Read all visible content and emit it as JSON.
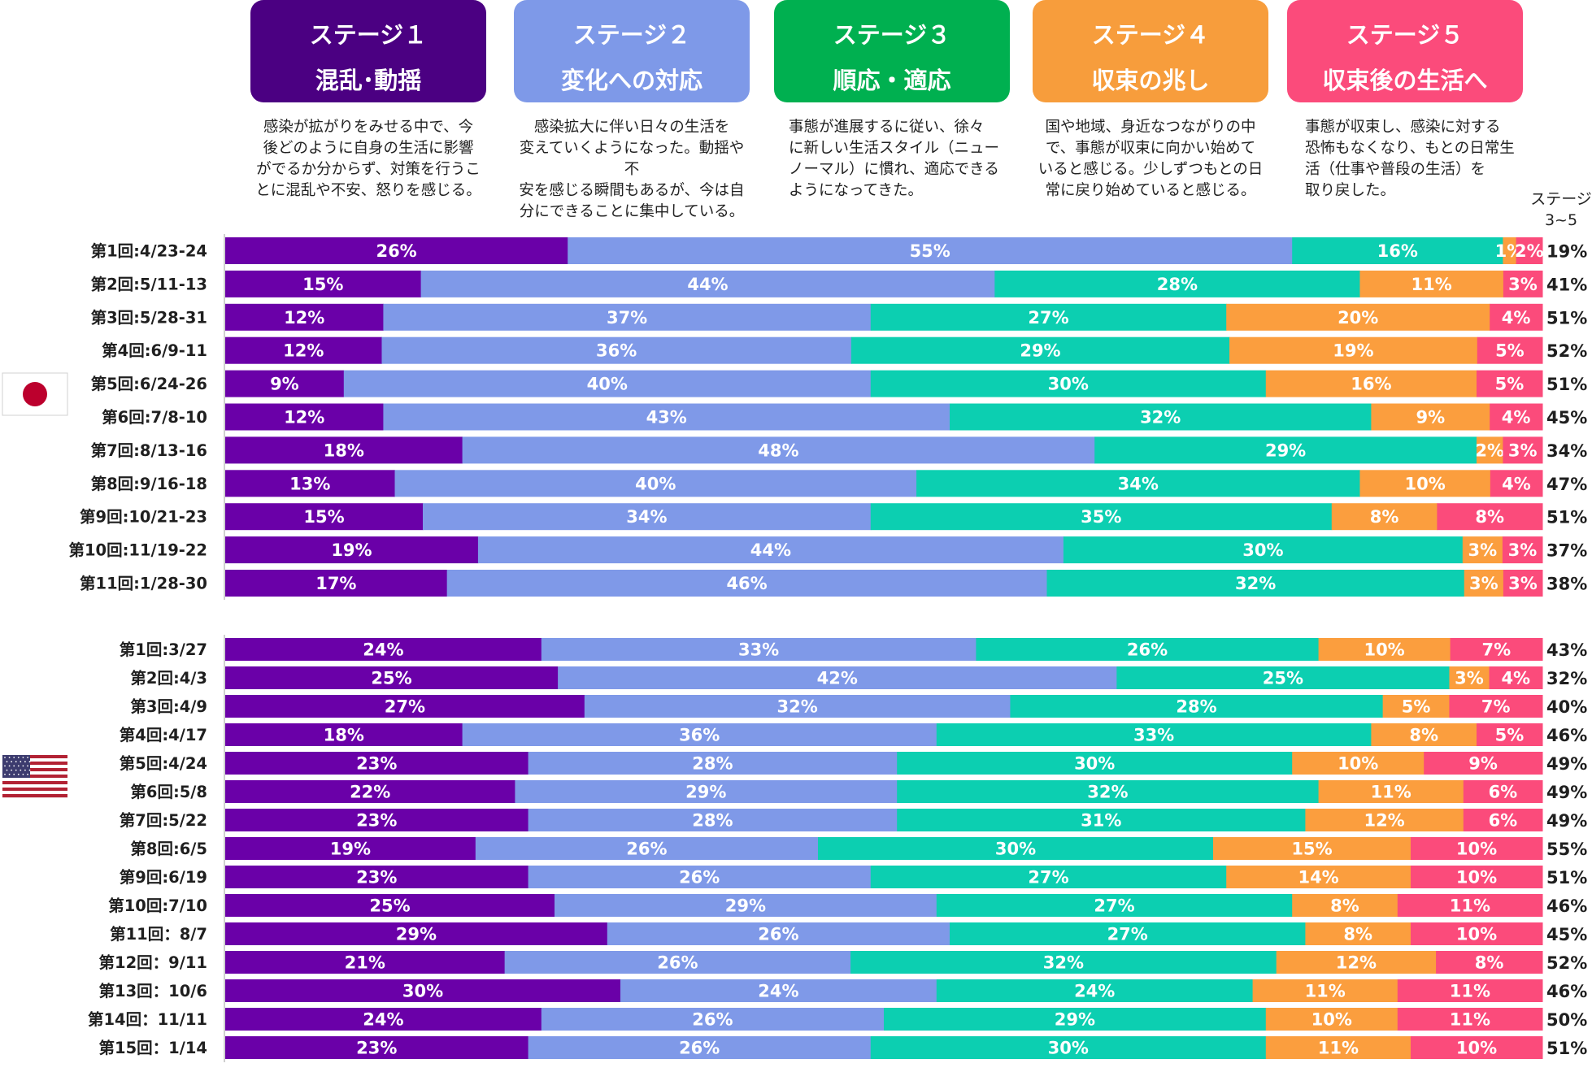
{
  "stages": [
    {
      "title": "ステージ１",
      "subtitle": "混乱･動揺",
      "color": "#4b0082",
      "desc": [
        "感染が拡がりをみせる中で、今",
        "後どのように自身の生活に影響",
        "がでるか分からず、対策を行うこ",
        "とに混乱や不安、怒りを感じる。"
      ]
    },
    {
      "title": "ステージ２",
      "subtitle": "変化への対応",
      "color": "#7e99e8",
      "desc": [
        "感染拡大に伴い日々の生活を",
        "変えていくようになった。動揺や不",
        "安を感じる瞬間もあるが、今は自",
        "分にできることに集中している。"
      ]
    },
    {
      "title": "ステージ３",
      "subtitle": "順応・適応",
      "color": "#00b050",
      "desc": [
        "事態が進展するに従い、徐々",
        "に新しい生活スタイル（ニュー",
        "ノーマル）に慣れ、適応できる",
        "ようになってきた。"
      ]
    },
    {
      "title": "ステージ４",
      "subtitle": "収束の兆し",
      "color": "#f79d3c",
      "desc": [
        "国や地域、身近なつながりの中",
        "で、事態が収束に向かい始めて",
        "いると感じる。少しずつもとの日",
        "常に戻り始めていると感じる。"
      ]
    },
    {
      "title": "ステージ５",
      "subtitle": "収束後の生活へ",
      "color": "#fb4b7b",
      "desc": [
        "事態が収束し、感染に対する",
        "恐怖もなくなり、もとの日常生",
        "活（仕事や普段の生活）を",
        "取り戻した。"
      ]
    }
  ],
  "stage35_header": [
    "ステージ",
    "3~5"
  ],
  "chart_data": {
    "type": "bar",
    "orientation": "horizontal-stacked-100",
    "series_colors": [
      "#6a00a8",
      "#7f99e8",
      "#0ccfb1",
      "#fb9e3e",
      "#fb4b7b"
    ],
    "groups": [
      {
        "flag": "japan-flag",
        "rows": [
          {
            "label": "第1回:4/23-24",
            "values": [
              26,
              55,
              16,
              1,
              2
            ],
            "total35": "19%"
          },
          {
            "label": "第2回:5/11-13",
            "values": [
              15,
              44,
              28,
              11,
              3
            ],
            "total35": "41%"
          },
          {
            "label": "第3回:5/28-31",
            "values": [
              12,
              37,
              27,
              20,
              4
            ],
            "total35": "51%"
          },
          {
            "label": "第4回:6/9-11",
            "values": [
              12,
              36,
              29,
              19,
              5
            ],
            "total35": "52%"
          },
          {
            "label": "第5回:6/24-26",
            "values": [
              9,
              40,
              30,
              16,
              5
            ],
            "total35": "51%"
          },
          {
            "label": "第6回:7/8-10",
            "values": [
              12,
              43,
              32,
              9,
              4
            ],
            "total35": "45%"
          },
          {
            "label": "第7回:8/13-16",
            "values": [
              18,
              48,
              29,
              2,
              3
            ],
            "total35": "34%"
          },
          {
            "label": "第8回:9/16-18",
            "values": [
              13,
              40,
              34,
              10,
              4
            ],
            "total35": "47%"
          },
          {
            "label": "第9回:10/21-23",
            "values": [
              15,
              34,
              35,
              8,
              8
            ],
            "total35": "51%"
          },
          {
            "label": "第10回:11/19-22",
            "values": [
              19,
              44,
              30,
              3,
              3
            ],
            "total35": "37%"
          },
          {
            "label": "第11回:1/28-30",
            "values": [
              17,
              46,
              32,
              3,
              3
            ],
            "total35": "38%"
          }
        ]
      },
      {
        "flag": "usa-flag",
        "rows": [
          {
            "label": "第1回:3/27",
            "values": [
              24,
              33,
              26,
              10,
              7
            ],
            "total35": "43%"
          },
          {
            "label": "第2回:4/3",
            "values": [
              25,
              42,
              25,
              3,
              4
            ],
            "total35": "32%"
          },
          {
            "label": "第3回:4/9",
            "values": [
              27,
              32,
              28,
              5,
              7
            ],
            "total35": "40%"
          },
          {
            "label": "第4回:4/17",
            "values": [
              18,
              36,
              33,
              8,
              5
            ],
            "total35": "46%"
          },
          {
            "label": "第5回:4/24",
            "values": [
              23,
              28,
              30,
              10,
              9
            ],
            "total35": "49%"
          },
          {
            "label": "第6回:5/8",
            "values": [
              22,
              29,
              32,
              11,
              6
            ],
            "total35": "49%"
          },
          {
            "label": "第7回:5/22",
            "values": [
              23,
              28,
              31,
              12,
              6
            ],
            "total35": "49%"
          },
          {
            "label": "第8回:6/5",
            "values": [
              19,
              26,
              30,
              15,
              10
            ],
            "total35": "55%"
          },
          {
            "label": "第9回:6/19",
            "values": [
              23,
              26,
              27,
              14,
              10
            ],
            "total35": "51%"
          },
          {
            "label": "第10回:7/10",
            "values": [
              25,
              29,
              27,
              8,
              11
            ],
            "total35": "46%"
          },
          {
            "label": "第11回：8/7",
            "values": [
              29,
              26,
              27,
              8,
              10
            ],
            "total35": "45%"
          },
          {
            "label": "第12回：9/11",
            "values": [
              21,
              26,
              32,
              12,
              8
            ],
            "total35": "52%"
          },
          {
            "label": "第13回：10/6",
            "values": [
              30,
              24,
              24,
              11,
              11
            ],
            "total35": "46%"
          },
          {
            "label": "第14回：11/11",
            "values": [
              24,
              26,
              29,
              10,
              11
            ],
            "total35": "50%"
          },
          {
            "label": "第15回：1/14",
            "values": [
              23,
              26,
              30,
              11,
              10
            ],
            "total35": "51%"
          }
        ]
      }
    ]
  }
}
